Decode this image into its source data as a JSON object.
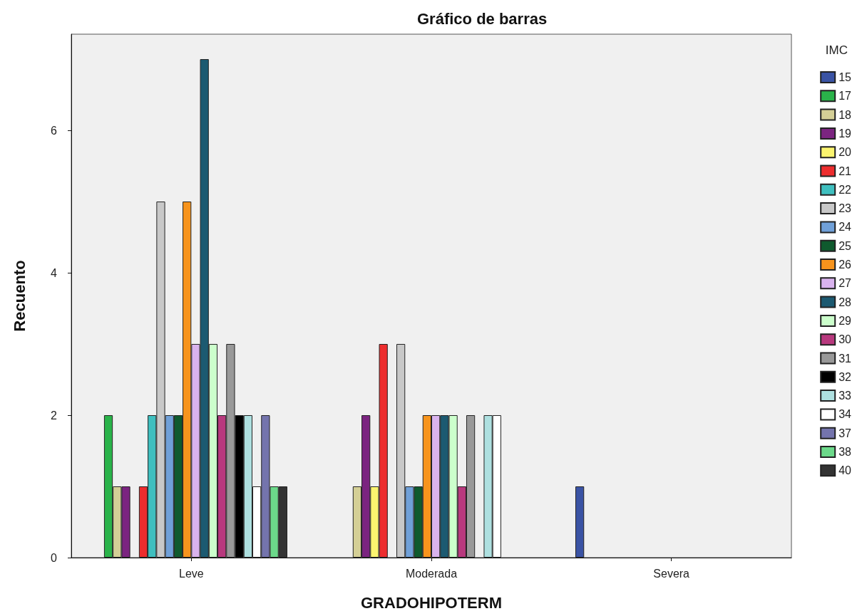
{
  "chart_data": {
    "type": "bar",
    "title": "Gráfico de barras",
    "xlabel": "GRADOHIPOTERM",
    "ylabel": "Recuento",
    "legend_title": "IMC",
    "categories": [
      "Leve",
      "Moderada",
      "Severa"
    ],
    "ylim": [
      0,
      7.35
    ],
    "yticks": [
      0,
      2,
      4,
      6
    ],
    "grid": false,
    "legend": "right",
    "series": [
      {
        "name": "15",
        "color": "#3a53a4",
        "values": [
          null,
          null,
          1
        ]
      },
      {
        "name": "17",
        "color": "#2ab34a",
        "values": [
          2,
          null,
          null
        ]
      },
      {
        "name": "18",
        "color": "#d4cf96",
        "values": [
          1,
          1,
          null
        ]
      },
      {
        "name": "19",
        "color": "#7b2480",
        "values": [
          1,
          2,
          null
        ]
      },
      {
        "name": "20",
        "color": "#fbf46f",
        "values": [
          null,
          1,
          null
        ]
      },
      {
        "name": "21",
        "color": "#ed2d2e",
        "values": [
          1,
          3,
          null
        ]
      },
      {
        "name": "22",
        "color": "#3fbfbf",
        "values": [
          2,
          null,
          null
        ]
      },
      {
        "name": "23",
        "color": "#c8c8c8",
        "values": [
          5,
          3,
          null
        ]
      },
      {
        "name": "24",
        "color": "#70a0d8",
        "values": [
          2,
          1,
          null
        ]
      },
      {
        "name": "25",
        "color": "#0f5a2e",
        "values": [
          2,
          1,
          null
        ]
      },
      {
        "name": "26",
        "color": "#f7941d",
        "values": [
          5,
          2,
          null
        ]
      },
      {
        "name": "27",
        "color": "#d9b3ee",
        "values": [
          3,
          2,
          null
        ]
      },
      {
        "name": "28",
        "color": "#1c5a71",
        "values": [
          7,
          2,
          null
        ]
      },
      {
        "name": "29",
        "color": "#ccffcc",
        "values": [
          3,
          2,
          null
        ]
      },
      {
        "name": "30",
        "color": "#b8397e",
        "values": [
          2,
          1,
          null
        ]
      },
      {
        "name": "31",
        "color": "#999999",
        "values": [
          3,
          2,
          null
        ]
      },
      {
        "name": "32",
        "color": "#000000",
        "values": [
          2,
          null,
          null
        ]
      },
      {
        "name": "33",
        "color": "#aee0e0",
        "values": [
          2,
          2,
          null
        ]
      },
      {
        "name": "34",
        "color": "#ffffff",
        "values": [
          1,
          2,
          null
        ]
      },
      {
        "name": "37",
        "color": "#7474ad",
        "values": [
          2,
          null,
          null
        ]
      },
      {
        "name": "38",
        "color": "#6cd98a",
        "values": [
          1,
          null,
          null
        ]
      },
      {
        "name": "40",
        "color": "#333333",
        "values": [
          1,
          null,
          null
        ]
      }
    ]
  }
}
